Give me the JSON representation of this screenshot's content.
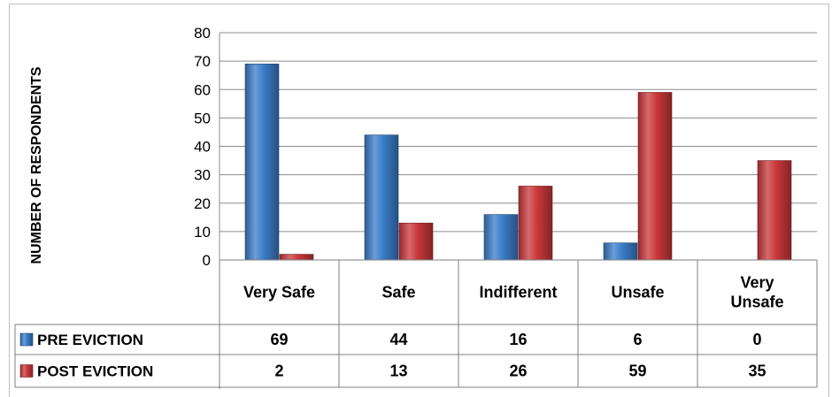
{
  "chart_data": {
    "type": "bar",
    "ylabel": "NUMBER OF RESPONDENTS",
    "xlabel": "",
    "categories": [
      "Very Safe",
      "Safe",
      "Indifferent",
      "Unsafe",
      "Very Unsafe"
    ],
    "category_lines": [
      [
        "Very Safe"
      ],
      [
        "Safe"
      ],
      [
        "Indifferent"
      ],
      [
        "Unsafe"
      ],
      [
        "Very",
        "Unsafe"
      ]
    ],
    "series": [
      {
        "name": "PRE EVICTION",
        "values": [
          69,
          44,
          16,
          6,
          0
        ],
        "color": "#3a7cc8"
      },
      {
        "name": "POST EVICTION",
        "values": [
          2,
          13,
          26,
          59,
          35
        ],
        "color": "#c9373a"
      }
    ],
    "ylim": [
      0,
      80
    ],
    "yticks": [
      0,
      10,
      20,
      30,
      40,
      50,
      60,
      70,
      80
    ],
    "grid": true,
    "legend": "data-table",
    "style": "3d-bars"
  }
}
